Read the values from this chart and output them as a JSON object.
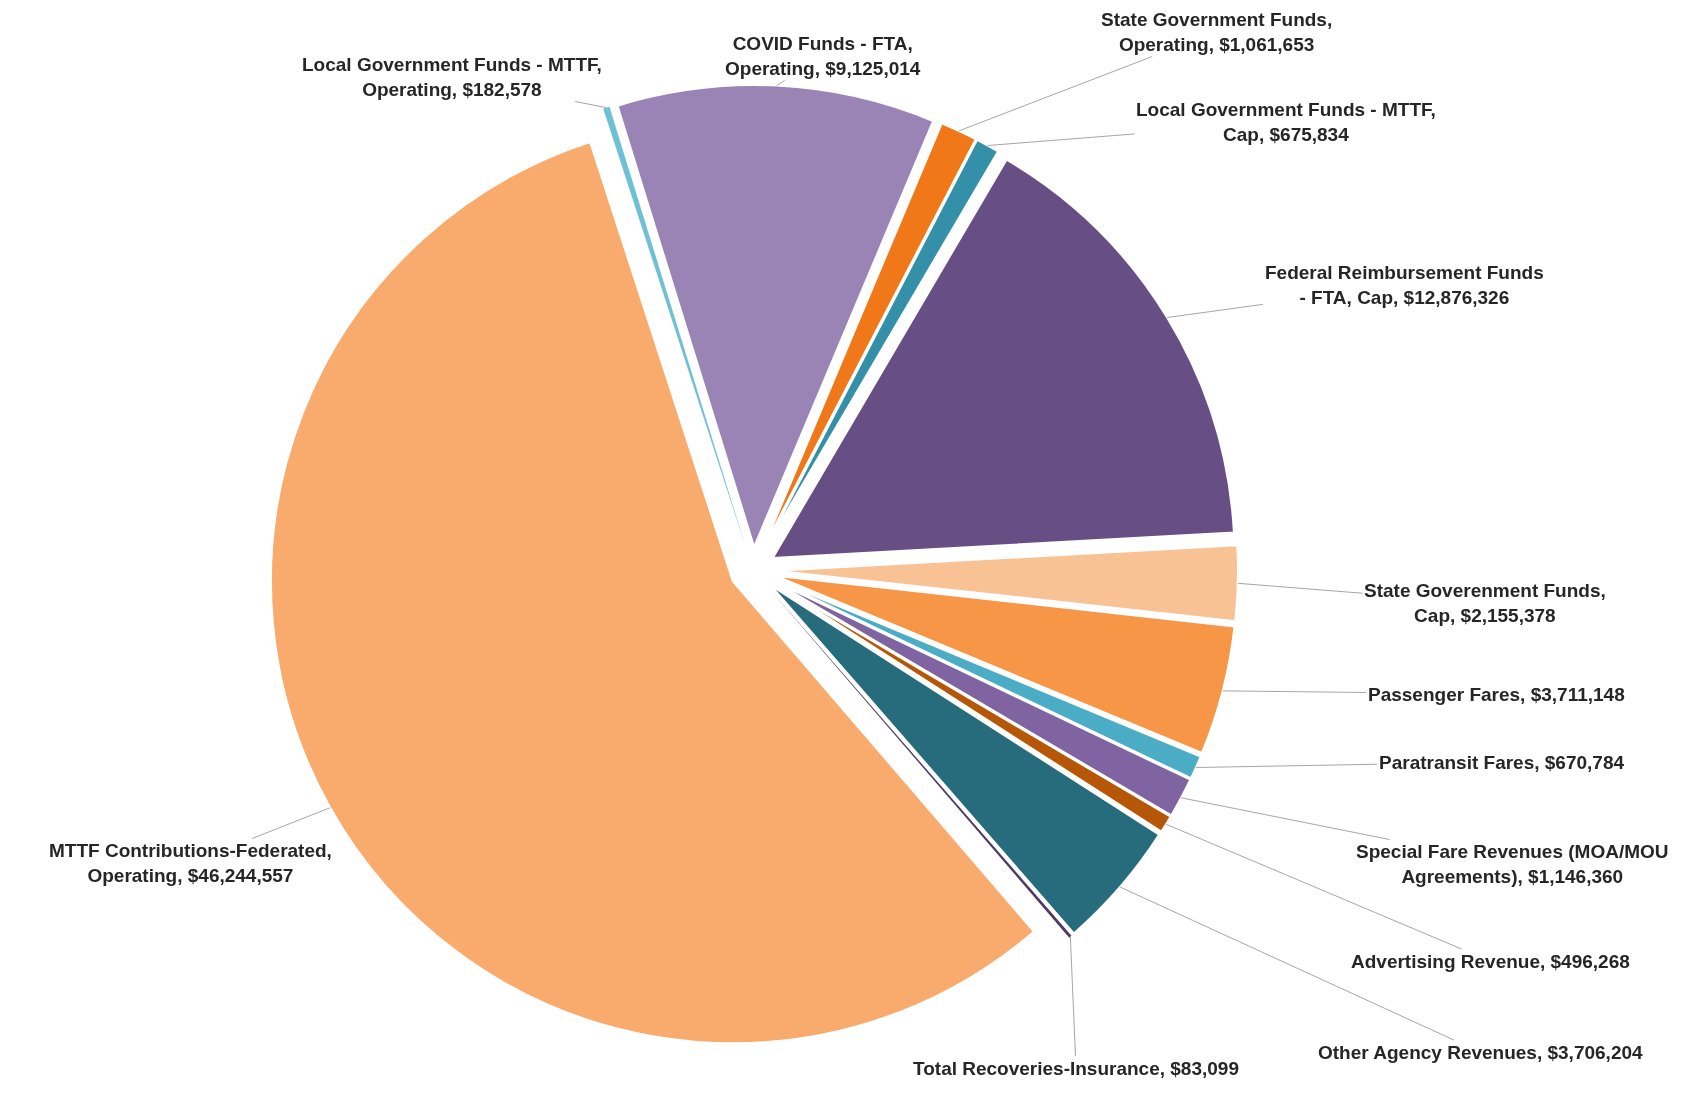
{
  "chart_data": {
    "type": "pie",
    "categories": [
      "Local Government Funds - MTTF, Operating",
      "COVID Funds - FTA, Operating",
      "State Government Funds, Operating",
      "Local Government Funds - MTTF, Cap",
      "Federal Reimbursement Funds - FTA, Cap",
      "State Goverenment Funds, Cap",
      "Passenger Fares",
      "Paratransit Fares",
      "Special Fare Revenues (MOA/MOU Agreements)",
      "Advertising Revenue",
      "Other Agency Revenues",
      "Total Recoveries-Insurance",
      "MTTF Contributions-Federated, Operating"
    ],
    "values": [
      182578,
      9125014,
      1061653,
      675834,
      12876326,
      2155378,
      3711148,
      670784,
      1146360,
      496268,
      3706204,
      83099,
      46244557
    ],
    "value_labels": [
      "$182,578",
      "$9,125,014",
      "$1,061,653",
      "$675,834",
      "$12,876,326",
      "$2,155,378",
      "$3,711,148",
      "$670,784",
      "$1,146,360",
      "$496,268",
      "$3,706,204",
      "$83,099",
      "$46,244,557"
    ],
    "colors": [
      "#6ec0d4",
      "#9a84b5",
      "#f07818",
      "#3490a8",
      "#674f86",
      "#f9c294",
      "#f79646",
      "#4bacc6",
      "#8064a2",
      "#b65708",
      "#266c7d",
      "#4d3b62",
      "#f8ab6c"
    ],
    "legend": false
  }
}
